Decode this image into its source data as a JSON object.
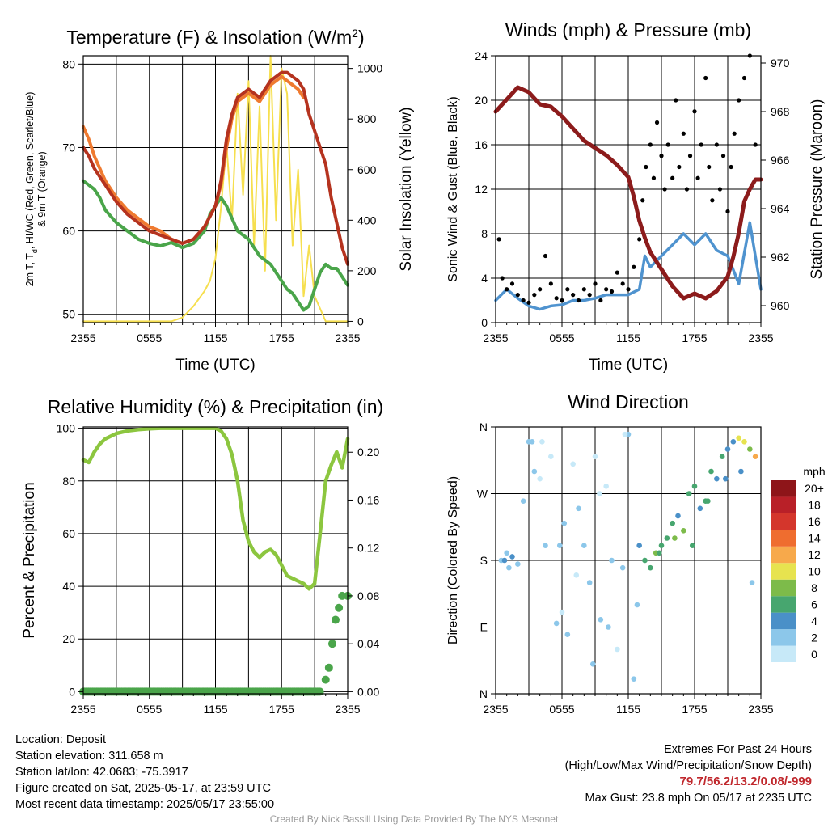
{
  "chart_data": [
    {
      "type": "line",
      "title": "Temperature (F) & Insolation (W/m",
      "title_sup": "2",
      "title_end": ")",
      "xlabel": "Time (UTC)",
      "ylabel_line1": "2m T, T",
      "ylabel_sub": "d",
      "ylabel_rest": ", HI/WC (Red, Green, Scarlet/Blue)",
      "ylabel_line2": "& 9m T (Orange)",
      "ylabel_right": "Solar Insolation (Yellow)",
      "x_ticks": [
        "2355",
        "0555",
        "1155",
        "1755",
        "2355"
      ],
      "xlim": [
        0,
        24
      ],
      "ylim": [
        49,
        81
      ],
      "y_ticks": [
        50,
        60,
        70,
        80
      ],
      "ylim_right": [
        -5,
        1050
      ],
      "y_ticks_right": [
        0,
        200,
        400,
        600,
        800,
        1000
      ],
      "grid": true,
      "series": [
        {
          "color": "#b5331f",
          "x": [
            0,
            0.5,
            1,
            1.5,
            2,
            3,
            4,
            5,
            6,
            7,
            8,
            9,
            10,
            11,
            12,
            12.5,
            13,
            13.5,
            14,
            15,
            16,
            17,
            18,
            18.5,
            19,
            19.5,
            20,
            20.5,
            21,
            21.5,
            22,
            22.5,
            23,
            23.5,
            24
          ],
          "values": [
            70,
            69,
            67.5,
            66.5,
            65.5,
            63.5,
            62,
            61,
            60,
            59.5,
            59,
            58.5,
            59,
            60.5,
            63,
            66,
            71,
            74,
            76,
            77,
            76,
            78,
            79,
            79,
            78.5,
            78,
            77,
            74,
            72,
            70,
            68,
            64,
            61,
            58,
            56
          ]
        },
        {
          "color": "#ef7a30",
          "x": [
            0,
            0.5,
            1,
            1.5,
            2,
            3,
            4,
            5,
            6,
            7,
            8,
            9,
            10,
            11,
            12,
            12.5,
            13,
            13.5,
            14,
            15,
            16,
            17,
            18,
            18.5,
            19,
            19.5,
            20
          ],
          "values": [
            72.5,
            71,
            69,
            67.5,
            66,
            64,
            62.5,
            61.5,
            60.5,
            60,
            59,
            58.5,
            59,
            60.5,
            63,
            65.5,
            70,
            73.5,
            75.5,
            76.5,
            75.5,
            77.5,
            78.5,
            78,
            77.5,
            77,
            76
          ]
        },
        {
          "color": "#4aa54a",
          "x": [
            0,
            0.5,
            1,
            1.5,
            2,
            3,
            4,
            5,
            6,
            7,
            8,
            9,
            10,
            11,
            11.5,
            12,
            12.5,
            13,
            14,
            15,
            16,
            17,
            18,
            18.5,
            19,
            19.5,
            20,
            20.5,
            21,
            21.5,
            22,
            22.5,
            23,
            23.5,
            24
          ],
          "values": [
            66,
            65.5,
            65,
            64,
            62.5,
            61,
            60,
            59,
            58.5,
            58.2,
            58.6,
            58,
            58.5,
            60,
            62,
            63,
            64,
            63,
            60,
            59,
            57,
            56,
            54,
            53,
            52.5,
            51.5,
            50.5,
            51,
            53,
            55,
            56,
            55.5,
            55.5,
            54.5,
            53.5
          ]
        },
        {
          "color": "#f6df4f",
          "axis": "right",
          "x": [
            0,
            5,
            8,
            9,
            10,
            11,
            11.5,
            12,
            12.5,
            13,
            13.5,
            14,
            14.5,
            15,
            15.5,
            16,
            16.5,
            17,
            17.5,
            18,
            18.5,
            19,
            19.5,
            20,
            20.5,
            21,
            22,
            24
          ],
          "values": [
            0,
            0,
            0,
            15,
            60,
            120,
            160,
            250,
            450,
            700,
            400,
            900,
            500,
            950,
            300,
            850,
            200,
            1050,
            400,
            1000,
            900,
            300,
            600,
            100,
            300,
            100,
            0,
            0
          ]
        }
      ]
    },
    {
      "type": "line",
      "title": "Winds (mph) & Pressure (mb)",
      "xlabel": "Time (UTC)",
      "ylabel": "Sonic Wind & Gust (Blue, Black)",
      "ylabel_right": "Station Pressure (Maroon)",
      "x_ticks": [
        "2355",
        "0555",
        "1155",
        "1755",
        "2355"
      ],
      "xlim": [
        0,
        24
      ],
      "ylim": [
        0,
        24
      ],
      "y_ticks": [
        0,
        4,
        8,
        12,
        16,
        20,
        24
      ],
      "ylim_right": [
        959.3,
        970.3
      ],
      "y_ticks_right": [
        960,
        962,
        964,
        966,
        968,
        970
      ],
      "grid": true,
      "series": [
        {
          "color": "#4f93cf",
          "x": [
            0,
            1,
            2,
            3,
            4,
            5,
            6,
            7,
            8,
            9,
            10,
            11,
            12,
            13,
            13.5,
            14,
            15,
            16,
            17,
            18,
            19,
            20,
            21,
            22,
            23,
            24
          ],
          "values": [
            2,
            3,
            2.2,
            1.5,
            1.2,
            1.5,
            1.6,
            2,
            2,
            2.2,
            2.5,
            2.5,
            2.5,
            3,
            6,
            5,
            6,
            7,
            8,
            7,
            8,
            6.5,
            6,
            3.5,
            9,
            3
          ]
        },
        {
          "color": "#8c1b1b",
          "axis": "right",
          "x": [
            0,
            1,
            2,
            3,
            4,
            5,
            6,
            7,
            8,
            9,
            10,
            11,
            12,
            12.5,
            13,
            13.5,
            14,
            15,
            16,
            17,
            18,
            19,
            20,
            21,
            21.5,
            22,
            22.5,
            23,
            23.5,
            24
          ],
          "values": [
            968,
            968.5,
            969,
            968.8,
            968.3,
            968.2,
            967.8,
            967.3,
            966.8,
            966.5,
            966.2,
            965.8,
            965.3,
            964.5,
            963.5,
            962.8,
            962.2,
            961.5,
            960.8,
            960.3,
            960.5,
            960.3,
            960.6,
            961.2,
            962,
            963,
            964.3,
            964.8,
            965.2,
            965.2
          ]
        }
      ],
      "gust_points": {
        "x": [
          0.3,
          0.6,
          1,
          1.5,
          2,
          2.5,
          3,
          3.5,
          4,
          4.5,
          5,
          5.5,
          6,
          6.5,
          7,
          7.5,
          8,
          8.5,
          9,
          9.5,
          10,
          10.5,
          11,
          11.5,
          12,
          12.5,
          13,
          13.3,
          13.6,
          14,
          14.3,
          14.6,
          15,
          15.3,
          15.6,
          16,
          16.3,
          16.6,
          17,
          17.3,
          17.6,
          18,
          18.3,
          18.6,
          19,
          19.3,
          19.6,
          20,
          20.3,
          20.6,
          21,
          21.3,
          21.6,
          22,
          22.5,
          23,
          23.5
        ],
        "values": [
          7.5,
          4,
          3,
          3.5,
          2.5,
          2,
          1.8,
          2.5,
          3,
          6,
          3.5,
          2.2,
          2,
          3,
          2.5,
          2,
          3,
          2.5,
          3.5,
          2,
          3,
          2.8,
          4.5,
          3.5,
          3,
          5,
          7.5,
          11,
          14,
          16,
          13,
          18,
          15,
          12,
          16,
          13,
          20,
          14,
          17,
          12,
          15,
          19,
          13,
          16,
          22,
          14,
          11,
          16,
          12,
          15,
          10,
          14,
          17,
          20,
          22,
          24,
          16
        ]
      }
    },
    {
      "type": "line",
      "title": "Relative Humidity (%) & Precipitation (in)",
      "ylabel": "Percent & Precipitation",
      "x_ticks": [
        "2355",
        "0555",
        "1155",
        "1755",
        "2355"
      ],
      "xlim": [
        0,
        24
      ],
      "ylim": [
        -0.8,
        100.5
      ],
      "y_ticks": [
        0,
        20,
        40,
        60,
        80,
        100
      ],
      "ylim_right": [
        -0.00176,
        0.2211
      ],
      "y_ticks_right": [
        "0.00",
        "0.04",
        "0.08",
        "0.12",
        "0.16",
        "0.20"
      ],
      "y_ticks_right_values": [
        0,
        0.04,
        0.08,
        0.12,
        0.16,
        0.2
      ],
      "grid": true,
      "series": [
        {
          "color": "#8cc63f",
          "x": [
            0,
            0.5,
            1,
            1.5,
            2,
            3,
            4,
            5,
            6,
            7,
            8,
            9,
            10,
            11,
            12,
            12.5,
            13,
            13.5,
            14,
            14.5,
            15,
            15.5,
            16,
            16.5,
            17,
            17.5,
            18,
            18.5,
            19,
            19.5,
            20,
            20.5,
            21,
            21.5,
            22,
            22.5,
            23,
            23.5,
            24
          ],
          "values": [
            88,
            87,
            91,
            94,
            96,
            98,
            99,
            99.5,
            99.8,
            100,
            100,
            100,
            100,
            100,
            100,
            99,
            96,
            90,
            80,
            65,
            57,
            53,
            51,
            53,
            54,
            52,
            48,
            44,
            43,
            42,
            41,
            39,
            41,
            60,
            80,
            86,
            91,
            85,
            96
          ]
        },
        {
          "color": "#4aa54a",
          "axis": "right",
          "x": [
            0,
            5,
            10,
            15,
            20,
            21.5,
            22,
            22.3,
            22.6,
            22.9,
            23.2,
            23.5,
            24
          ],
          "values": [
            0,
            0,
            0,
            0,
            0,
            0,
            0.01,
            0.02,
            0.04,
            0.06,
            0.07,
            0.08,
            0.08
          ]
        }
      ]
    },
    {
      "type": "scatter",
      "title": "Wind Direction",
      "ylabel": "Direction (Colored By Speed)",
      "x_ticks": [
        "2355",
        "0555",
        "1155",
        "1755",
        "2355"
      ],
      "xlim": [
        0,
        24
      ],
      "y_ticks": [
        "N",
        "E",
        "S",
        "W",
        "N"
      ],
      "y_tick_values": [
        0,
        90,
        180,
        270,
        360
      ],
      "ylim": [
        0,
        360
      ],
      "grid": true,
      "legend_title": "mph",
      "legend_labels": [
        "0",
        "2",
        "4",
        "6",
        "8",
        "10",
        "12",
        "14",
        "16",
        "18",
        "20+"
      ],
      "legend_colors": [
        "#c7e9f8",
        "#8cc7ea",
        "#4a90c8",
        "#47a66f",
        "#7dbb4a",
        "#e7e34f",
        "#f7a94b",
        "#ef6d2f",
        "#d4362c",
        "#b92028",
        "#8e1519"
      ],
      "x": [
        0.5,
        1,
        1.5,
        2,
        3,
        3.5,
        4,
        4.5,
        5,
        5.5,
        6,
        6.5,
        7,
        7.5,
        8,
        8.5,
        9,
        9.5,
        10,
        10.5,
        11,
        11.5,
        12,
        12.5,
        13,
        13.5,
        14,
        14.5,
        15,
        15.5,
        16,
        16.5,
        17,
        17.5,
        18,
        18.5,
        19,
        19.5,
        20,
        20.5,
        21,
        21.5,
        22,
        22.5,
        23,
        23.5,
        2.5,
        4.2,
        5.8,
        7.3,
        8.8,
        10.2,
        11.7,
        6.2,
        9.4,
        12.8,
        1.2,
        3.3,
        14.8,
        16.2,
        17.8,
        19.2,
        20.8,
        22.2,
        23.2,
        0.8
      ],
      "values": [
        180,
        190,
        185,
        175,
        340,
        300,
        290,
        200,
        320,
        95,
        110,
        80,
        310,
        250,
        200,
        150,
        320,
        100,
        280,
        180,
        60,
        170,
        350,
        20,
        200,
        180,
        170,
        190,
        200,
        210,
        230,
        240,
        220,
        270,
        280,
        250,
        260,
        300,
        290,
        320,
        330,
        340,
        345,
        340,
        330,
        320,
        260,
        340,
        200,
        160,
        40,
        90,
        350,
        230,
        270,
        120,
        170,
        340,
        190,
        210,
        200,
        260,
        290,
        300,
        150,
        180
      ],
      "speed": [
        2,
        2,
        3,
        2,
        1,
        1,
        0,
        1,
        0,
        1,
        0,
        1,
        0,
        1,
        2,
        1,
        0,
        1,
        0,
        1,
        0,
        1,
        1,
        1,
        4,
        5,
        6,
        7,
        6,
        5,
        6,
        4,
        7,
        5,
        6,
        4,
        5,
        6,
        4,
        5,
        3,
        4,
        9,
        10,
        8,
        11,
        1,
        0,
        1,
        0,
        1,
        1,
        0,
        1,
        0,
        1,
        2,
        1,
        6,
        7,
        6,
        5,
        4,
        3,
        2,
        3
      ]
    }
  ],
  "info_left": [
    "Location: Deposit",
    "Station elevation: 311.658 m",
    "Station lat/lon: 42.0683; -75.3917",
    "Figure created on Sat, 2025-05-17, at 23:59 UTC",
    "Most recent data timestamp: 2025/05/17 23:55:00"
  ],
  "extremes_title": "Extremes For Past 24 Hours",
  "extremes_subtitle": "(High/Low/Max Wind/Precipitation/Snow Depth)",
  "extremes_values": "79.7/56.2/13.2/0.08/-999",
  "max_gust": "Max Gust: 23.8 mph On 05/17 at 2235 UTC",
  "credit": "Created By Nick Bassill Using Data Provided By The NYS Mesonet"
}
